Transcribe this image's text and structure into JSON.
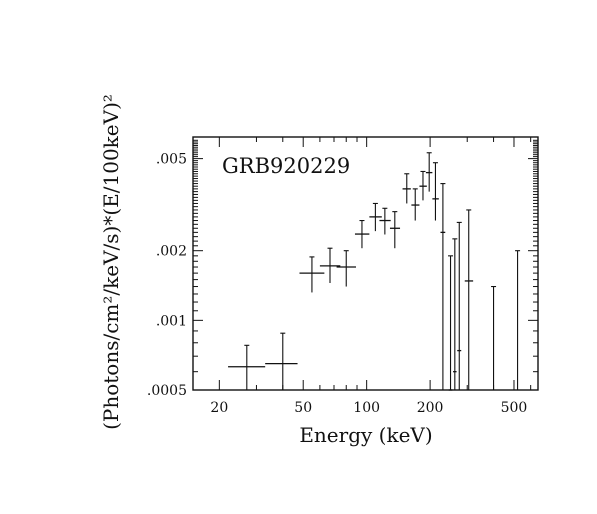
{
  "chart_data": {
    "type": "scatter",
    "title": "",
    "annotation": "GRB920229",
    "xlabel": "Energy (keV)",
    "ylabel": "(Photons/cm²/keV/s)*(E/100keV)²",
    "x_scale": "log",
    "y_scale": "log",
    "xlim": [
      15,
      650
    ],
    "ylim": [
      0.0005,
      0.0062
    ],
    "x_ticks": [
      20,
      50,
      100,
      200,
      500
    ],
    "x_tick_labels": [
      "20",
      "50",
      "100",
      "200",
      "500"
    ],
    "y_ticks": [
      0.0005,
      0.001,
      0.002,
      0.005
    ],
    "y_tick_labels": [
      ".0005",
      ".001",
      ".002",
      ".005"
    ],
    "grid": false,
    "legend": "none",
    "points": [
      {
        "x": 27,
        "x_lo": 22,
        "x_hi": 33,
        "y": 0.00063,
        "y_lo": 0.0005,
        "y_hi": 0.00078
      },
      {
        "x": 40,
        "x_lo": 33,
        "x_hi": 47,
        "y": 0.00065,
        "y_lo": 0.0005,
        "y_hi": 0.00088
      },
      {
        "x": 55,
        "x_lo": 48,
        "x_hi": 63,
        "y": 0.0016,
        "y_lo": 0.00132,
        "y_hi": 0.00188
      },
      {
        "x": 67,
        "x_lo": 60,
        "x_hi": 75,
        "y": 0.00172,
        "y_lo": 0.00145,
        "y_hi": 0.00205
      },
      {
        "x": 80,
        "x_lo": 72,
        "x_hi": 89,
        "y": 0.0017,
        "y_lo": 0.0014,
        "y_hi": 0.002
      },
      {
        "x": 95,
        "x_lo": 88,
        "x_hi": 103,
        "y": 0.00236,
        "y_lo": 0.00205,
        "y_hi": 0.0027
      },
      {
        "x": 110,
        "x_lo": 103,
        "x_hi": 118,
        "y": 0.0028,
        "y_lo": 0.00243,
        "y_hi": 0.0032
      },
      {
        "x": 122,
        "x_lo": 115,
        "x_hi": 130,
        "y": 0.0027,
        "y_lo": 0.00235,
        "y_hi": 0.00305
      },
      {
        "x": 136,
        "x_lo": 129,
        "x_hi": 144,
        "y": 0.0025,
        "y_lo": 0.00205,
        "y_hi": 0.00295
      },
      {
        "x": 155,
        "x_lo": 148,
        "x_hi": 162,
        "y": 0.0037,
        "y_lo": 0.0032,
        "y_hi": 0.0043
      },
      {
        "x": 170,
        "x_lo": 163,
        "x_hi": 178,
        "y": 0.00315,
        "y_lo": 0.0027,
        "y_hi": 0.0037
      },
      {
        "x": 185,
        "x_lo": 178,
        "x_hi": 193,
        "y": 0.0038,
        "y_lo": 0.0033,
        "y_hi": 0.0044
      },
      {
        "x": 198,
        "x_lo": 191,
        "x_hi": 205,
        "y": 0.00435,
        "y_lo": 0.0036,
        "y_hi": 0.0053
      },
      {
        "x": 212,
        "x_lo": 205,
        "x_hi": 220,
        "y": 0.00335,
        "y_lo": 0.0027,
        "y_hi": 0.0048
      },
      {
        "x": 230,
        "x_lo": 224,
        "x_hi": 236,
        "y": 0.0024,
        "y_lo": 0.0005,
        "y_hi": 0.0039
      },
      {
        "x": 250,
        "x_lo": 245,
        "x_hi": 255,
        "y": 0.0005,
        "y_lo": 0.0005,
        "y_hi": 0.0019
      },
      {
        "x": 262,
        "x_lo": 257,
        "x_hi": 267,
        "y": 0.0006,
        "y_lo": 0.0005,
        "y_hi": 0.00225
      },
      {
        "x": 275,
        "x_lo": 269,
        "x_hi": 281,
        "y": 0.00074,
        "y_lo": 0.0005,
        "y_hi": 0.00265
      },
      {
        "x": 305,
        "x_lo": 292,
        "x_hi": 320,
        "y": 0.00148,
        "y_lo": 0.0005,
        "y_hi": 0.003
      },
      {
        "x": 400,
        "x_lo": 400,
        "x_hi": 400,
        "y": 0.0005,
        "y_lo": 0.0005,
        "y_hi": 0.0014
      },
      {
        "x": 520,
        "x_lo": 520,
        "x_hi": 520,
        "y": 0.0005,
        "y_lo": 0.0005,
        "y_hi": 0.002
      }
    ]
  }
}
